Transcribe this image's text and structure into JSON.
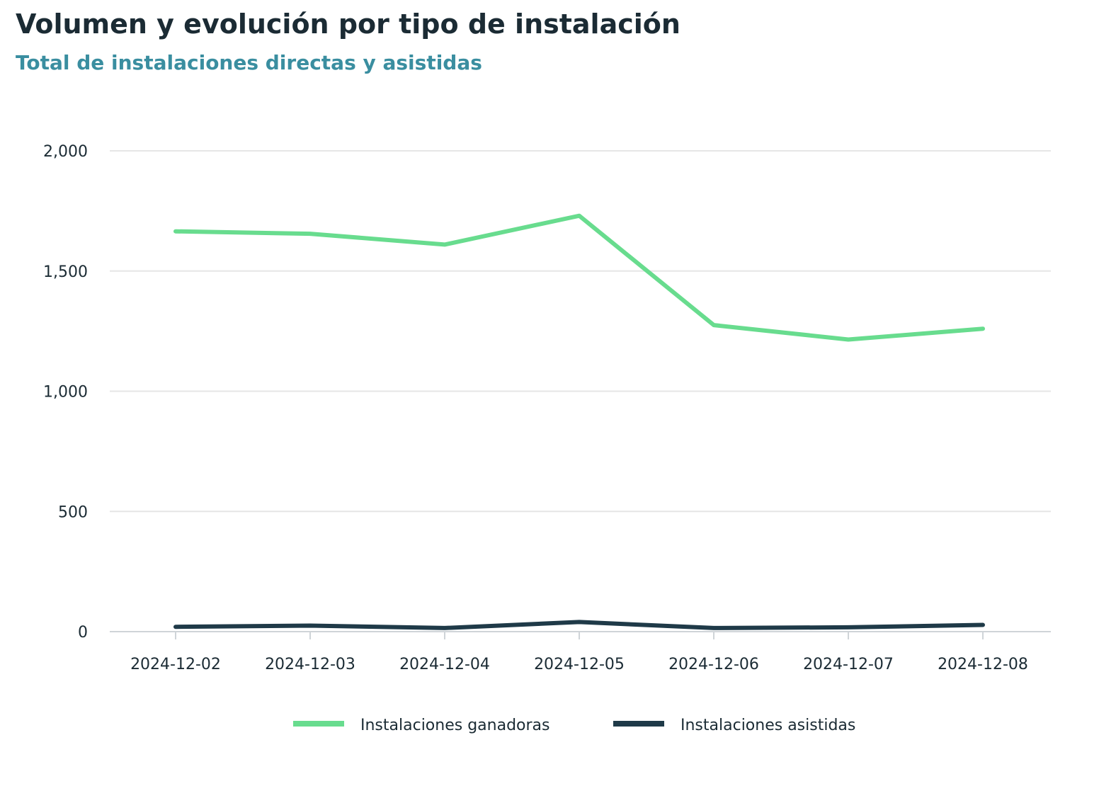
{
  "title": "Volumen y evolución por tipo de instalación",
  "subtitle": "Total de instalaciones directas y asistidas",
  "chart_data": {
    "type": "line",
    "title": "Volumen y evolución por tipo de instalación",
    "subtitle": "Total de instalaciones directas y asistidas",
    "xlabel": "",
    "ylabel": "",
    "x": [
      "2024-12-02",
      "2024-12-03",
      "2024-12-04",
      "2024-12-05",
      "2024-12-06",
      "2024-12-07",
      "2024-12-08"
    ],
    "ylim": [
      0,
      2000
    ],
    "yticks": [
      0,
      500,
      1000,
      1500,
      2000
    ],
    "ytick_labels": [
      "0",
      "500",
      "1,000",
      "1,500",
      "2,000"
    ],
    "grid": true,
    "legend_position": "bottom-center",
    "series": [
      {
        "name": "Instalaciones ganadoras",
        "color": "#68dc8e",
        "values": [
          1665,
          1655,
          1610,
          1730,
          1275,
          1215,
          1260
        ]
      },
      {
        "name": "Instalaciones asistidas",
        "color": "#1f3a48",
        "values": [
          20,
          25,
          15,
          40,
          15,
          18,
          28
        ]
      }
    ]
  }
}
